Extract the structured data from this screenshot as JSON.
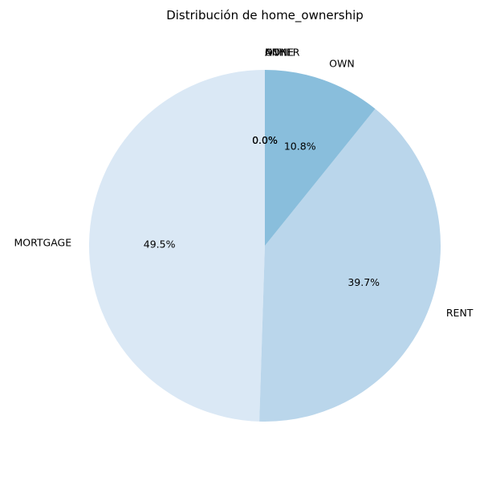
{
  "chart_data": {
    "type": "pie",
    "title": "Distribución de home_ownership",
    "categories": [
      "MORTGAGE",
      "RENT",
      "OWN",
      "ANY",
      "NONE",
      "OTHER"
    ],
    "values": [
      49.5,
      39.7,
      10.8,
      0.0,
      0.0,
      0.0
    ],
    "pct_labels": [
      "49.5%",
      "39.7%",
      "10.8%",
      "0.0%",
      "0.0%",
      "0.0%"
    ],
    "colors": [
      "#dae8f5",
      "#bad6eb",
      "#89bedc",
      "#539ecd",
      "#2b7bba",
      "#0b559f"
    ],
    "start_angle_deg": 90,
    "direction": "counterclockwise",
    "legend": "none"
  }
}
